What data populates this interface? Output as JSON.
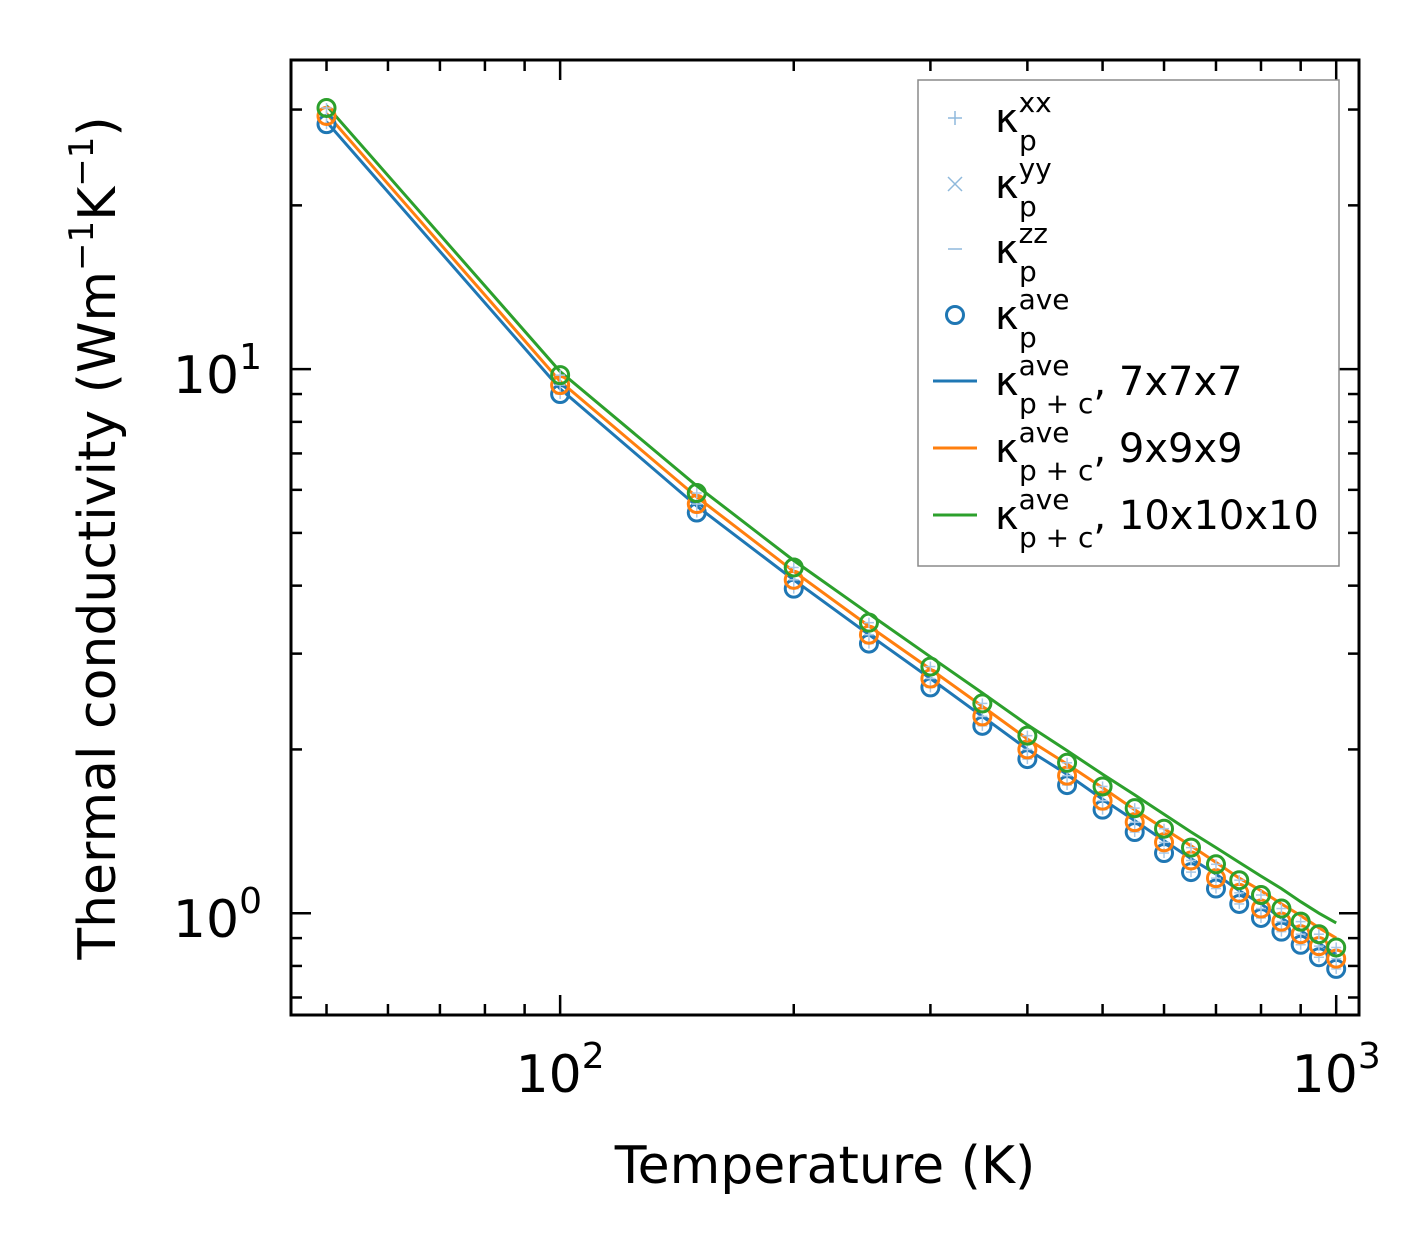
{
  "chart_data": {
    "type": "line",
    "xscale": "log",
    "yscale": "log",
    "xlabel": "Temperature (K)",
    "ylabel": {
      "base": "Thermal conductivity (Wm",
      "sup1": "−1",
      "mid": "K",
      "sup2": "−1",
      "end": ")"
    },
    "xlim": [
      45,
      1070
    ],
    "ylim": [
      0.65,
      37
    ],
    "xticks": [
      {
        "value": 100,
        "base": "10",
        "exp": "2"
      },
      {
        "value": 1000,
        "base": "10",
        "exp": "3"
      }
    ],
    "yticks": [
      {
        "value": 1,
        "base": "10",
        "exp": "0"
      },
      {
        "value": 10,
        "base": "10",
        "exp": "1"
      }
    ],
    "x": [
      50,
      100,
      150,
      200,
      250,
      300,
      350,
      400,
      450,
      500,
      550,
      600,
      650,
      700,
      750,
      800,
      850,
      900,
      950,
      1000
    ],
    "series": [
      {
        "name": "κp+c ave, 7x7x7",
        "kind": "line",
        "color": "#1f77b4",
        "values": [
          28.5,
          9.2,
          5.6,
          4.1,
          3.25,
          2.7,
          2.3,
          2.0,
          1.8,
          1.62,
          1.48,
          1.36,
          1.26,
          1.18,
          1.1,
          1.04,
          0.98,
          0.93,
          0.88,
          0.84
        ]
      },
      {
        "name": "κp+c ave, 9x9x9",
        "kind": "line",
        "color": "#ff7f0e",
        "values": [
          29.5,
          9.5,
          5.82,
          4.25,
          3.37,
          2.81,
          2.4,
          2.09,
          1.88,
          1.7,
          1.55,
          1.43,
          1.33,
          1.24,
          1.16,
          1.1,
          1.04,
          0.99,
          0.94,
          0.9
        ]
      },
      {
        "name": "κp+c ave, 10x10x10",
        "kind": "line",
        "color": "#2ca02c",
        "values": [
          30.5,
          9.9,
          6.1,
          4.45,
          3.55,
          2.96,
          2.54,
          2.22,
          1.99,
          1.8,
          1.65,
          1.52,
          1.41,
          1.32,
          1.24,
          1.17,
          1.11,
          1.05,
          1.0,
          0.96
        ]
      },
      {
        "name": "κp ave, 7x7x7",
        "kind": "marker",
        "color": "#1f77b4",
        "values": [
          28.2,
          9.0,
          5.45,
          3.95,
          3.13,
          2.6,
          2.21,
          1.92,
          1.72,
          1.55,
          1.41,
          1.29,
          1.19,
          1.11,
          1.04,
          0.98,
          0.925,
          0.875,
          0.83,
          0.79
        ]
      },
      {
        "name": "κp ave, 9x9x9",
        "kind": "marker",
        "color": "#ff7f0e",
        "values": [
          29.2,
          9.35,
          5.65,
          4.1,
          3.25,
          2.7,
          2.3,
          2.0,
          1.79,
          1.61,
          1.47,
          1.35,
          1.25,
          1.16,
          1.09,
          1.02,
          0.965,
          0.915,
          0.87,
          0.825
        ]
      },
      {
        "name": "κp ave, 10x10x10",
        "kind": "marker",
        "color": "#2ca02c",
        "values": [
          30.2,
          9.75,
          5.92,
          4.32,
          3.42,
          2.84,
          2.43,
          2.12,
          1.89,
          1.71,
          1.56,
          1.43,
          1.32,
          1.23,
          1.15,
          1.08,
          1.02,
          0.965,
          0.915,
          0.865
        ]
      }
    ],
    "legend": {
      "placement": "upper-right",
      "entries": [
        {
          "base": "κ",
          "sup": "xx",
          "sub": "p",
          "suffix": "",
          "symbol": "plus",
          "color": "#8fb9dc"
        },
        {
          "base": "κ",
          "sup": "yy",
          "sub": "p",
          "suffix": "",
          "symbol": "cross",
          "color": "#8fb9dc"
        },
        {
          "base": "κ",
          "sup": "zz",
          "sub": "p",
          "suffix": "",
          "symbol": "hline",
          "color": "#8fb9dc"
        },
        {
          "base": "κ",
          "sup": "ave",
          "sub": "p",
          "suffix": "",
          "symbol": "circle",
          "color": "#1f77b4"
        },
        {
          "base": "κ",
          "sup": "ave",
          "sub": "p + c",
          "suffix": ", 7x7x7",
          "symbol": "line",
          "color": "#1f77b4"
        },
        {
          "base": "κ",
          "sup": "ave",
          "sub": "p + c",
          "suffix": ", 9x9x9",
          "symbol": "line",
          "color": "#ff7f0e"
        },
        {
          "base": "κ",
          "sup": "ave",
          "sub": "p + c",
          "suffix": ", 10x10x10",
          "symbol": "line",
          "color": "#2ca02c"
        }
      ]
    }
  }
}
